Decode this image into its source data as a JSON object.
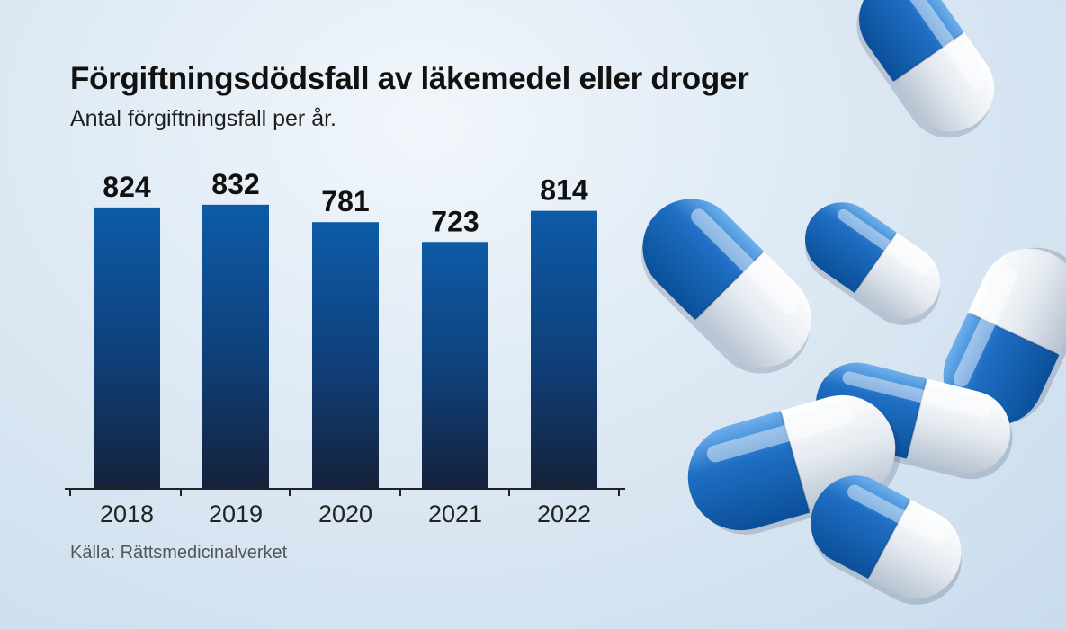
{
  "chart_data": {
    "type": "bar",
    "title": "Förgiftningsdödsfall av läkemedel eller droger",
    "subtitle": "Antal förgiftningsfall per år.",
    "categories": [
      "2018",
      "2019",
      "2020",
      "2021",
      "2022"
    ],
    "values": [
      824,
      832,
      781,
      723,
      814
    ],
    "data_labels": [
      "824",
      "832",
      "781",
      "723",
      "814"
    ],
    "source": "Källa: Rättsmedicinalverket",
    "grid": false,
    "legend": "none",
    "bar_color_top": "#0d5ba8",
    "bar_color_bottom": "#15213a",
    "pill_blue": "#1f6fc4",
    "pill_white": "#eef1f5"
  }
}
